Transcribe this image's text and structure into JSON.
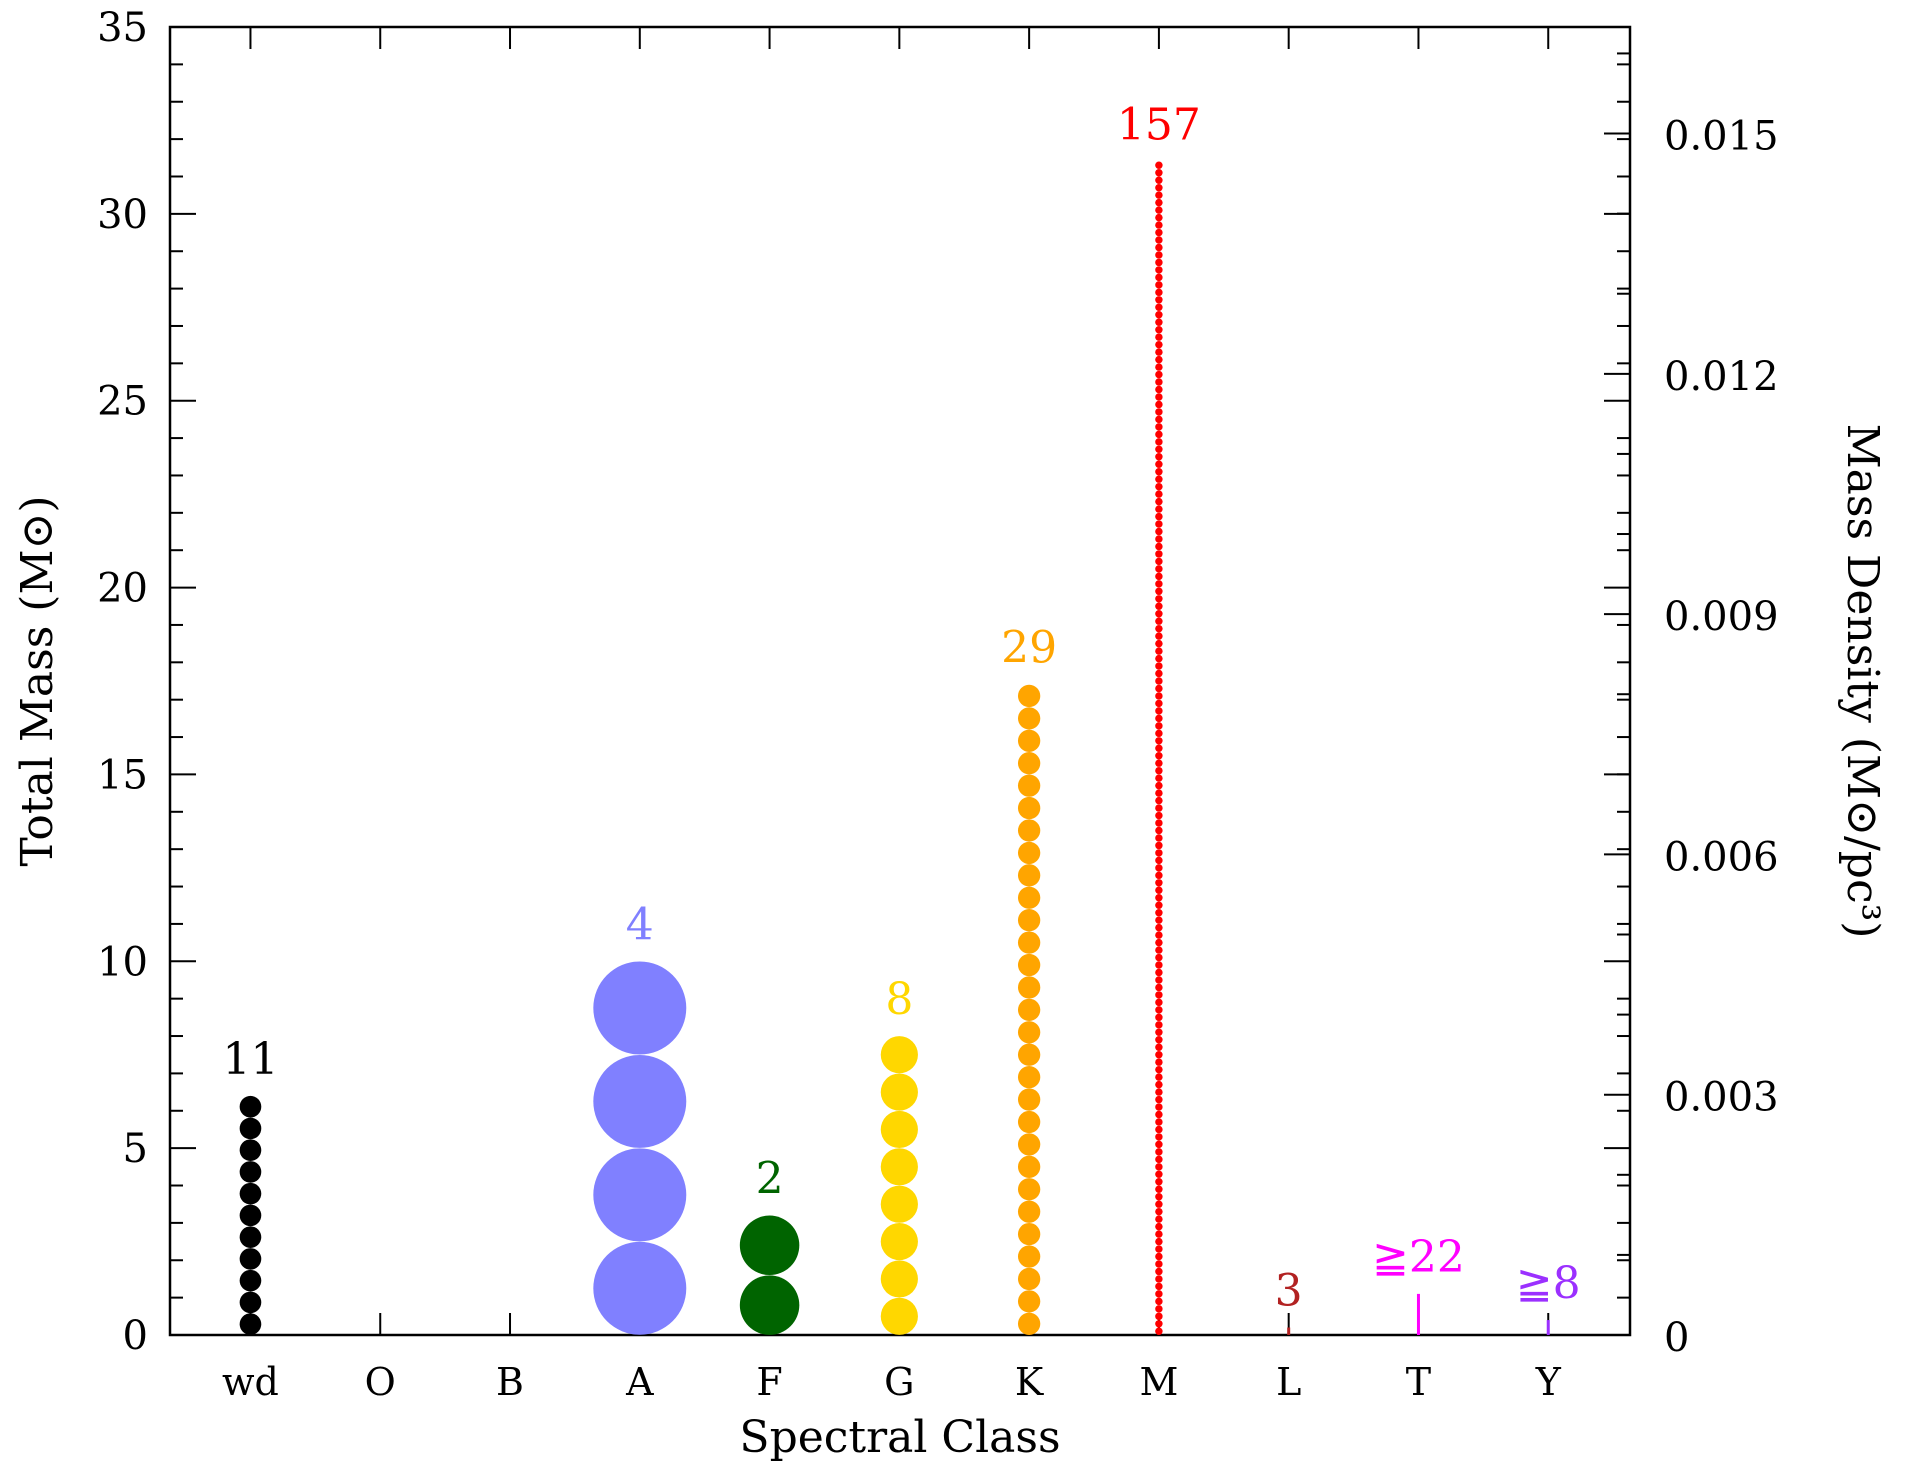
{
  "chart_data": {
    "type": "scatter",
    "xlabel": "Spectral Class",
    "ylabel": "Total Mass (M⊙)",
    "ylabel_right": "Mass Density (M⊙/pc³)",
    "ylim": [
      0,
      35
    ],
    "yticks": [
      0,
      5,
      10,
      15,
      20,
      25,
      30,
      35
    ],
    "ylim_right": [
      0,
      0.01633
    ],
    "yticks_right": [
      "0",
      "0.003",
      "0.006",
      "0.009",
      "0.012",
      "0.015"
    ],
    "yticks_right_values": [
      0,
      0.003,
      0.006,
      0.009,
      0.012,
      0.015
    ],
    "categories": [
      "wd",
      "O",
      "B",
      "A",
      "F",
      "G",
      "K",
      "M",
      "L",
      "T",
      "Y"
    ],
    "groups": [
      {
        "class": "wd",
        "count_label": "11",
        "count": 11,
        "total_mass": 6.4,
        "color": "#000000"
      },
      {
        "class": "O",
        "count_label": "",
        "count": 0,
        "total_mass": 0,
        "color": "#000000"
      },
      {
        "class": "B",
        "count_label": "",
        "count": 0,
        "total_mass": 0,
        "color": "#000000"
      },
      {
        "class": "A",
        "count_label": "4",
        "count": 4,
        "total_mass": 10.0,
        "color": "#8080ff"
      },
      {
        "class": "F",
        "count_label": "2",
        "count": 2,
        "total_mass": 3.2,
        "color": "#006400"
      },
      {
        "class": "G",
        "count_label": "8",
        "count": 8,
        "total_mass": 8.0,
        "color": "#ffd700"
      },
      {
        "class": "K",
        "count_label": "29",
        "count": 29,
        "total_mass": 17.4,
        "color": "#ffa500"
      },
      {
        "class": "M",
        "count_label": "157",
        "count": 157,
        "total_mass": 31.4,
        "color": "#ff0000"
      },
      {
        "class": "L",
        "count_label": "3",
        "count": 3,
        "total_mass": 0.2,
        "color": "#b22222"
      },
      {
        "class": "T",
        "count_label": "≧22",
        "count": 22,
        "total_mass": 1.1,
        "color": "#ff00ff"
      },
      {
        "class": "Y",
        "count_label": "≧8",
        "count": 8,
        "total_mass": 0.4,
        "color": "#9b30ff"
      }
    ]
  }
}
